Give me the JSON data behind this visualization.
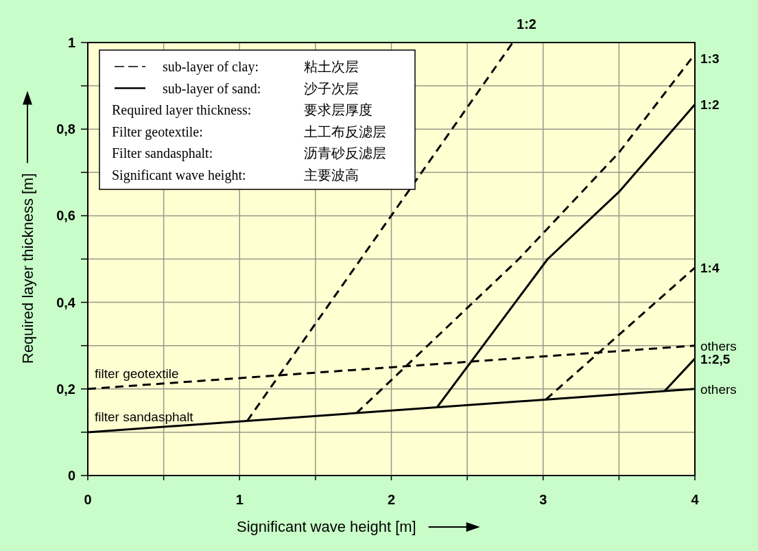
{
  "chart_data": {
    "type": "line",
    "xlabel": "Significant wave height [m]",
    "ylabel": "Required layer thickness [m]",
    "xlim": [
      0,
      4
    ],
    "ylim": [
      0,
      1
    ],
    "xticks": [
      0,
      {
        "value": 0.5,
        "label": null
      },
      1,
      {
        "value": 1.5,
        "label": null
      },
      2,
      {
        "value": 2.5,
        "label": null
      },
      3,
      {
        "value": 3.5,
        "label": null
      },
      4
    ],
    "yticks": [
      0,
      {
        "value": 0.1,
        "label": null
      },
      {
        "value": 0.2,
        "label": "0,2"
      },
      {
        "value": 0.3,
        "label": null
      },
      {
        "value": 0.4,
        "label": "0,4"
      },
      {
        "value": 0.5,
        "label": null
      },
      {
        "value": 0.6,
        "label": "0,6"
      },
      {
        "value": 0.7,
        "label": null
      },
      {
        "value": 0.8,
        "label": "0,8"
      },
      {
        "value": 0.9,
        "label": null
      },
      {
        "value": 1,
        "label": "1"
      }
    ],
    "grid": true,
    "series": [
      {
        "name": "others",
        "color": "#000000",
        "line_style": "solid",
        "x": [
          0,
          4
        ],
        "values": [
          0.1,
          0.2
        ]
      },
      {
        "name": "others",
        "color": "#000000",
        "line_style": "dashed",
        "x": [
          0,
          4
        ],
        "values": [
          0.2,
          0.3
        ]
      },
      {
        "name": "1:2",
        "color": "#000000",
        "line_style": "dashed",
        "x": [
          1.05,
          2.8
        ],
        "values": [
          0.126,
          1
        ]
      },
      {
        "name": "1:3",
        "color": "#000000",
        "line_style": "dashed",
        "x": [
          1.77,
          2.84,
          3.5,
          3.98
        ],
        "values": [
          0.144,
          0.5,
          0.746,
          0.964
        ]
      },
      {
        "name": "1:2",
        "color": "#000000",
        "line_style": "solid",
        "x": [
          2.3,
          3.03,
          3.5,
          4
        ],
        "values": [
          0.157,
          0.5,
          0.655,
          0.857
        ]
      },
      {
        "name": "1:4",
        "color": "#000000",
        "line_style": "dashed",
        "x": [
          3.02,
          4
        ],
        "values": [
          0.176,
          0.48
        ]
      },
      {
        "name": "1:2,5",
        "color": "#000000",
        "line_style": "solid",
        "x": [
          3.8,
          4
        ],
        "values": [
          0.195,
          0.27
        ]
      }
    ],
    "annotations": [
      "filter geotextile",
      "filter sandasphalt",
      "sub-layer of clay:",
      "粘土次层",
      "sub-layer of sand:",
      "沙子次层",
      "Required layer thickness:",
      "要求层厚度",
      "Filter geotextile:",
      "土工布反滤层",
      "Filter sandasphalt:",
      "沥青砂反滤层",
      "Significant wave height:",
      "主要波高"
    ]
  }
}
